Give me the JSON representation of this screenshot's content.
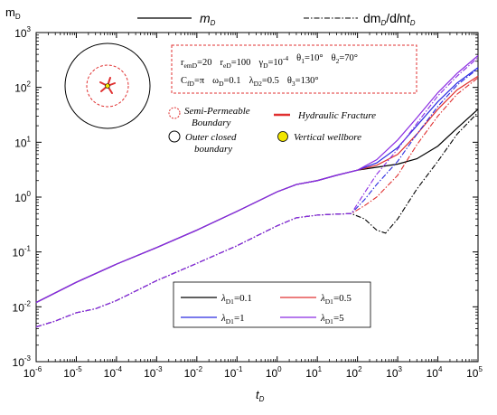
{
  "chart_data": {
    "type": "line",
    "x_scale": "log",
    "y_scale": "log",
    "xlim": [
      1e-06,
      100000
    ],
    "ylim": [
      0.001,
      1000
    ],
    "xlabel": "t_D",
    "ylabel": "m_D",
    "grid": false,
    "x_ticks": [
      {
        "base": "10",
        "exp": "-6"
      },
      {
        "base": "10",
        "exp": "-5"
      },
      {
        "base": "10",
        "exp": "-4"
      },
      {
        "base": "10",
        "exp": "-3"
      },
      {
        "base": "10",
        "exp": "-2"
      },
      {
        "base": "10",
        "exp": "-1"
      },
      {
        "base": "10",
        "exp": "0"
      },
      {
        "base": "10",
        "exp": "1"
      },
      {
        "base": "10",
        "exp": "2"
      },
      {
        "base": "10",
        "exp": "3"
      },
      {
        "base": "10",
        "exp": "4"
      },
      {
        "base": "10",
        "exp": "5"
      }
    ],
    "y_ticks": [
      {
        "base": "10",
        "exp": "-3"
      },
      {
        "base": "10",
        "exp": "-2"
      },
      {
        "base": "10",
        "exp": "-1"
      },
      {
        "base": "10",
        "exp": "0"
      },
      {
        "base": "10",
        "exp": "1"
      },
      {
        "base": "10",
        "exp": "2"
      },
      {
        "base": "10",
        "exp": "3"
      }
    ],
    "style_legend": [
      {
        "label": "m_D",
        "dash": "solid"
      },
      {
        "label": "dm_D/dlnt_D",
        "dash": "dashdot"
      }
    ],
    "series": [
      {
        "name": "λD1=0.1",
        "color": "#000000",
        "md": [
          [
            1e-06,
            0.012
          ],
          [
            1e-05,
            0.028
          ],
          [
            0.0001,
            0.06
          ],
          [
            0.001,
            0.12
          ],
          [
            0.01,
            0.25
          ],
          [
            0.1,
            0.55
          ],
          [
            1,
            1.25
          ],
          [
            3,
            1.7
          ],
          [
            10,
            2.0
          ],
          [
            30,
            2.5
          ],
          [
            100,
            3.1
          ],
          [
            300,
            3.5
          ],
          [
            1000,
            4.0
          ],
          [
            3000,
            5.0
          ],
          [
            10000,
            8.5
          ],
          [
            30000,
            18
          ],
          [
            100000,
            40
          ]
        ],
        "deriv": [
          [
            1e-06,
            0.0043
          ],
          [
            3e-06,
            0.0055
          ],
          [
            1e-05,
            0.0078
          ],
          [
            3e-05,
            0.0092
          ],
          [
            0.0001,
            0.013
          ],
          [
            0.001,
            0.03
          ],
          [
            0.01,
            0.062
          ],
          [
            0.1,
            0.13
          ],
          [
            1,
            0.3
          ],
          [
            3,
            0.42
          ],
          [
            10,
            0.47
          ],
          [
            30,
            0.49
          ],
          [
            70,
            0.5
          ],
          [
            150,
            0.4
          ],
          [
            300,
            0.25
          ],
          [
            500,
            0.22
          ],
          [
            1000,
            0.4
          ],
          [
            3000,
            1.4
          ],
          [
            10000,
            4.5
          ],
          [
            30000,
            14
          ],
          [
            100000,
            35
          ]
        ]
      },
      {
        "name": "λD1=0.5",
        "color": "#e03030",
        "md": [
          [
            1e-06,
            0.012
          ],
          [
            1e-05,
            0.028
          ],
          [
            0.0001,
            0.06
          ],
          [
            0.001,
            0.12
          ],
          [
            0.01,
            0.25
          ],
          [
            0.1,
            0.55
          ],
          [
            1,
            1.25
          ],
          [
            3,
            1.7
          ],
          [
            10,
            2.0
          ],
          [
            30,
            2.5
          ],
          [
            100,
            3.1
          ],
          [
            300,
            3.8
          ],
          [
            1000,
            6.0
          ],
          [
            3000,
            14
          ],
          [
            10000,
            40
          ],
          [
            30000,
            90
          ],
          [
            100000,
            160
          ]
        ],
        "deriv": [
          [
            1e-06,
            0.0043
          ],
          [
            3e-06,
            0.0055
          ],
          [
            1e-05,
            0.0078
          ],
          [
            3e-05,
            0.0092
          ],
          [
            0.0001,
            0.013
          ],
          [
            0.001,
            0.03
          ],
          [
            0.01,
            0.062
          ],
          [
            0.1,
            0.13
          ],
          [
            1,
            0.3
          ],
          [
            3,
            0.42
          ],
          [
            10,
            0.47
          ],
          [
            30,
            0.49
          ],
          [
            70,
            0.5
          ],
          [
            150,
            0.7
          ],
          [
            300,
            1.0
          ],
          [
            1000,
            2.5
          ],
          [
            3000,
            9
          ],
          [
            10000,
            30
          ],
          [
            30000,
            75
          ],
          [
            100000,
            150
          ]
        ]
      },
      {
        "name": "λD1=1",
        "color": "#2a2ae0",
        "md": [
          [
            1e-06,
            0.012
          ],
          [
            1e-05,
            0.028
          ],
          [
            0.0001,
            0.06
          ],
          [
            0.001,
            0.12
          ],
          [
            0.01,
            0.25
          ],
          [
            0.1,
            0.55
          ],
          [
            1,
            1.25
          ],
          [
            3,
            1.7
          ],
          [
            10,
            2.0
          ],
          [
            30,
            2.5
          ],
          [
            100,
            3.1
          ],
          [
            300,
            4.2
          ],
          [
            1000,
            8.0
          ],
          [
            3000,
            20
          ],
          [
            10000,
            55
          ],
          [
            30000,
            120
          ],
          [
            100000,
            230
          ]
        ],
        "deriv": [
          [
            1e-06,
            0.0043
          ],
          [
            3e-06,
            0.0055
          ],
          [
            1e-05,
            0.0078
          ],
          [
            3e-05,
            0.0092
          ],
          [
            0.0001,
            0.013
          ],
          [
            0.001,
            0.03
          ],
          [
            0.01,
            0.062
          ],
          [
            0.1,
            0.13
          ],
          [
            1,
            0.3
          ],
          [
            3,
            0.42
          ],
          [
            10,
            0.47
          ],
          [
            30,
            0.49
          ],
          [
            70,
            0.5
          ],
          [
            150,
            0.9
          ],
          [
            300,
            1.7
          ],
          [
            1000,
            4.5
          ],
          [
            3000,
            14
          ],
          [
            10000,
            45
          ],
          [
            30000,
            110
          ],
          [
            100000,
            220
          ]
        ]
      },
      {
        "name": "λD1=5",
        "color": "#8a2be2",
        "md": [
          [
            1e-06,
            0.012
          ],
          [
            1e-05,
            0.028
          ],
          [
            0.0001,
            0.06
          ],
          [
            0.001,
            0.12
          ],
          [
            0.01,
            0.25
          ],
          [
            0.1,
            0.55
          ],
          [
            1,
            1.25
          ],
          [
            3,
            1.7
          ],
          [
            10,
            2.0
          ],
          [
            30,
            2.5
          ],
          [
            100,
            3.1
          ],
          [
            300,
            4.8
          ],
          [
            1000,
            11
          ],
          [
            3000,
            28
          ],
          [
            10000,
            80
          ],
          [
            30000,
            180
          ],
          [
            100000,
            380
          ]
        ],
        "deriv": [
          [
            1e-06,
            0.0043
          ],
          [
            3e-06,
            0.0055
          ],
          [
            1e-05,
            0.0078
          ],
          [
            3e-05,
            0.0092
          ],
          [
            0.0001,
            0.013
          ],
          [
            0.001,
            0.03
          ],
          [
            0.01,
            0.062
          ],
          [
            0.1,
            0.13
          ],
          [
            1,
            0.3
          ],
          [
            3,
            0.42
          ],
          [
            10,
            0.47
          ],
          [
            30,
            0.49
          ],
          [
            70,
            0.5
          ],
          [
            150,
            1.2
          ],
          [
            300,
            2.6
          ],
          [
            1000,
            7.5
          ],
          [
            3000,
            22
          ],
          [
            10000,
            70
          ],
          [
            30000,
            160
          ],
          [
            100000,
            350
          ]
        ]
      }
    ],
    "parameter_box": {
      "line1": [
        {
          "text": "r",
          "sub": "emD",
          "rest": "=20"
        },
        {
          "text": "r",
          "sub": "eD",
          "rest": "=100"
        },
        {
          "text": "γ",
          "sub": "D",
          "rest": "=10",
          "sup": "-4"
        },
        {
          "text": "θ",
          "sub": "1",
          "rest": "=10°"
        },
        {
          "text": "θ",
          "sub": "2",
          "rest": "=70°"
        }
      ],
      "line2": [
        {
          "text": "C",
          "sub": "fD",
          "rest": "=π"
        },
        {
          "text": "ω",
          "sub": "D",
          "rest": "=0.1"
        },
        {
          "text": "λ",
          "sub": "D2",
          "rest": "=0.5"
        },
        {
          "text": "θ",
          "sub": "3",
          "rest": "=130°"
        }
      ]
    },
    "schematic_legend": {
      "semi_permeable_1": "Semi-Permeable",
      "semi_permeable_2": "Boundary",
      "hydraulic_fracture": "Hydraulic Fracture",
      "outer_closed_1": "Outer closed",
      "outer_closed_2": "boundary",
      "vertical_wellbore": "Vertical wellbore"
    },
    "lambda_legend": [
      {
        "sym": "λ",
        "sub": "D1",
        "rest": "=0.1",
        "color": "#000000"
      },
      {
        "sym": "λ",
        "sub": "D1",
        "rest": "=0.5",
        "color": "#e03030"
      },
      {
        "sym": "λ",
        "sub": "D1",
        "rest": "=1",
        "color": "#2a2ae0"
      },
      {
        "sym": "λ",
        "sub": "D1",
        "rest": "=5",
        "color": "#8a2be2"
      }
    ],
    "colors": {
      "red_box": "#e03030",
      "wellbore": "#f2e600",
      "fracture": "#e03030"
    }
  }
}
